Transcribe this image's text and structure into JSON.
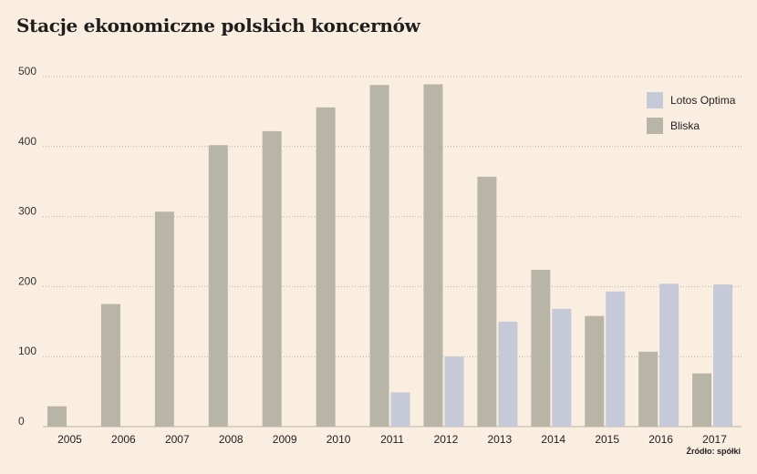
{
  "title": "Stacje ekonomiczne polskich koncernów",
  "source": "Źródło: spółki",
  "colors": {
    "bliska": "#b8b4a6",
    "lotos": "#c5c9d8",
    "grid": "#b9b3a8",
    "background": "#faeee0"
  },
  "chart_data": {
    "type": "bar",
    "categories": [
      "2005",
      "2006",
      "2007",
      "2008",
      "2009",
      "2010",
      "2011",
      "2012",
      "2013",
      "2014",
      "2015",
      "2016",
      "2017"
    ],
    "series": [
      {
        "name": "Bliska",
        "color": "#b8b4a6",
        "values": [
          29,
          175,
          307,
          402,
          422,
          456,
          488,
          489,
          357,
          224,
          158,
          107,
          76
        ]
      },
      {
        "name": "Lotos Optima",
        "color": "#c5c9d8",
        "values": [
          0,
          0,
          0,
          0,
          0,
          0,
          49,
          100,
          150,
          168,
          193,
          204,
          203
        ]
      }
    ],
    "yticks": [
      0,
      100,
      200,
      300,
      400,
      500
    ],
    "ylim": [
      0,
      500
    ],
    "grid": "dotted horizontal",
    "legend": [
      {
        "label": "Lotos Optima",
        "color": "#c5c9d8"
      },
      {
        "label": "Bliska",
        "color": "#b8b4a6"
      }
    ],
    "legend_position": "top-right"
  }
}
